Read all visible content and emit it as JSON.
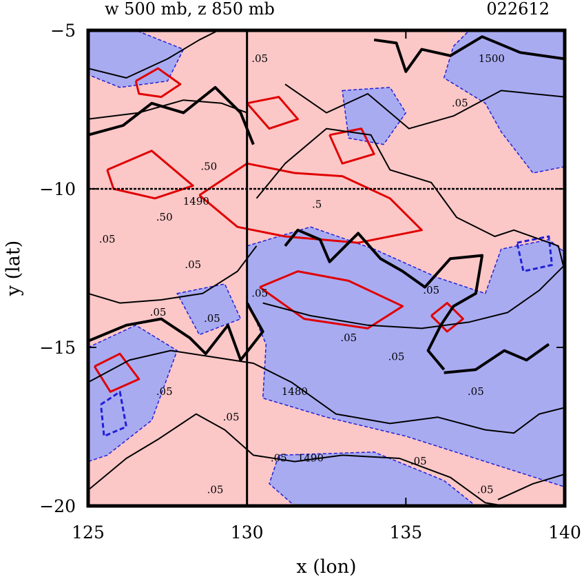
{
  "header": {
    "title": "w 500 mb, z 850 mb",
    "timestamp": "022612"
  },
  "chart_data": {
    "type": "contour",
    "xlabel": "x (lon)",
    "ylabel": "y (lat)",
    "xlim": [
      125,
      140
    ],
    "ylim": [
      -20,
      -5
    ],
    "x_ticks": [
      125,
      130,
      135,
      140
    ],
    "y_ticks": [
      -5,
      -10,
      -15,
      -20
    ],
    "x_tick_labels": [
      "125",
      "130",
      "135",
      "140"
    ],
    "y_tick_labels": [
      "−5",
      "−10",
      "−15",
      "−20"
    ],
    "reference_lines": {
      "lon": 130,
      "lat": -10
    },
    "colors": {
      "positive_fill": "#fbc7c7",
      "negative_fill": "#a9abf1",
      "positive_contour": "#e00000",
      "negative_contour": "#1f1fd8",
      "height_contour": "#000000"
    },
    "contour_labels": [
      {
        "text": ".05",
        "x": 130.4,
        "y": -6.0
      },
      {
        "text": ".05",
        "x": 136.7,
        "y": -7.4
      },
      {
        "text": ".50",
        "x": 128.8,
        "y": -9.4
      },
      {
        "text": "1490",
        "x": 128.4,
        "y": -10.5
      },
      {
        "text": ".5",
        "x": 132.2,
        "y": -10.6
      },
      {
        "text": ".50",
        "x": 127.4,
        "y": -11.0
      },
      {
        "text": "1500",
        "x": 137.7,
        "y": -6.0
      },
      {
        "text": ".05",
        "x": 125.6,
        "y": -11.7
      },
      {
        "text": ".05",
        "x": 128.3,
        "y": -12.5
      },
      {
        "text": ".05",
        "x": 127.2,
        "y": -14.0
      },
      {
        "text": ".05",
        "x": 128.9,
        "y": -14.2
      },
      {
        "text": ".05",
        "x": 130.4,
        "y": -13.4
      },
      {
        "text": ".05",
        "x": 133.2,
        "y": -14.8
      },
      {
        "text": ".05",
        "x": 135.8,
        "y": -13.3
      },
      {
        "text": ".05",
        "x": 134.7,
        "y": -15.4
      },
      {
        "text": ".05",
        "x": 127.4,
        "y": -16.5
      },
      {
        "text": ".05",
        "x": 129.5,
        "y": -17.3
      },
      {
        "text": "1480",
        "x": 131.5,
        "y": -16.5
      },
      {
        "text": ".05",
        "x": 137.2,
        "y": -16.5
      },
      {
        "text": ".05",
        "x": 131.0,
        "y": -18.6
      },
      {
        "text": "1490",
        "x": 132.0,
        "y": -18.6
      },
      {
        "text": ".05",
        "x": 135.4,
        "y": -18.7
      },
      {
        "text": ".05",
        "x": 129.0,
        "y": -19.6
      },
      {
        "text": ".05",
        "x": 137.5,
        "y": -19.6
      }
    ],
    "fill_regions": [
      {
        "sign": "negative",
        "points": [
          [
            125,
            -5
          ],
          [
            126.5,
            -5
          ],
          [
            128,
            -5.6
          ],
          [
            127.5,
            -6.6
          ],
          [
            126,
            -6.8
          ],
          [
            125,
            -6.4
          ]
        ]
      },
      {
        "sign": "negative",
        "points": [
          [
            137,
            -5
          ],
          [
            140,
            -5
          ],
          [
            140,
            -9.3
          ],
          [
            139,
            -9.5
          ],
          [
            138,
            -8.2
          ],
          [
            137.5,
            -7.3
          ],
          [
            136.2,
            -6.5
          ],
          [
            136.5,
            -5.5
          ]
        ]
      },
      {
        "sign": "negative",
        "points": [
          [
            133,
            -6.9
          ],
          [
            134.5,
            -6.8
          ],
          [
            135,
            -7.6
          ],
          [
            134.3,
            -8.6
          ],
          [
            133.2,
            -8.4
          ]
        ]
      },
      {
        "sign": "negative",
        "points": [
          [
            130,
            -11.8
          ],
          [
            132,
            -11.2
          ],
          [
            134,
            -11.9
          ],
          [
            136,
            -12.8
          ],
          [
            137.5,
            -13.3
          ],
          [
            138,
            -11.9
          ],
          [
            139.5,
            -11.6
          ],
          [
            140,
            -12
          ],
          [
            140,
            -19.4
          ],
          [
            137.5,
            -18.6
          ],
          [
            135,
            -17.8
          ],
          [
            132.5,
            -17.2
          ],
          [
            130.5,
            -16.6
          ],
          [
            130.6,
            -14.9
          ],
          [
            130,
            -13.5
          ]
        ]
      },
      {
        "sign": "negative",
        "points": [
          [
            125,
            -15
          ],
          [
            126.5,
            -14.3
          ],
          [
            127.8,
            -15.1
          ],
          [
            127,
            -17.3
          ],
          [
            125.6,
            -18.4
          ],
          [
            125,
            -18.6
          ]
        ]
      },
      {
        "sign": "negative",
        "points": [
          [
            127.8,
            -13.3
          ],
          [
            129.3,
            -13
          ],
          [
            129.8,
            -14.1
          ],
          [
            128.5,
            -14.6
          ]
        ]
      },
      {
        "sign": "negative",
        "points": [
          [
            131,
            -18.4
          ],
          [
            134,
            -18.3
          ],
          [
            136.2,
            -19.2
          ],
          [
            137.2,
            -20
          ],
          [
            131.5,
            -20
          ],
          [
            130.7,
            -19.3
          ]
        ]
      }
    ],
    "contour_lines": [
      {
        "kind": "positive",
        "points": [
          [
            126.5,
            -6.6
          ],
          [
            127.2,
            -6.2
          ],
          [
            127.9,
            -6.7
          ],
          [
            127.3,
            -7.1
          ],
          [
            126.6,
            -7.0
          ],
          [
            126.5,
            -6.6
          ]
        ]
      },
      {
        "kind": "positive",
        "points": [
          [
            125.6,
            -9.4
          ],
          [
            127.0,
            -8.8
          ],
          [
            128.3,
            -9.9
          ],
          [
            127.1,
            -10.3
          ],
          [
            125.8,
            -10.0
          ],
          [
            125.6,
            -9.4
          ]
        ]
      },
      {
        "kind": "positive",
        "points": [
          [
            128.5,
            -10.2
          ],
          [
            130.0,
            -9.2
          ],
          [
            131.5,
            -9.5
          ],
          [
            133,
            -9.6
          ],
          [
            134.5,
            -10.3
          ],
          [
            135.5,
            -11.3
          ],
          [
            133.5,
            -11.7
          ],
          [
            131.2,
            -11.5
          ],
          [
            129.7,
            -11.2
          ],
          [
            128.5,
            -10.2
          ]
        ]
      },
      {
        "kind": "positive",
        "points": [
          [
            130.4,
            -13.1
          ],
          [
            131.6,
            -12.6
          ],
          [
            133.2,
            -12.9
          ],
          [
            134.9,
            -13.7
          ],
          [
            133.8,
            -14.4
          ],
          [
            131.8,
            -14.1
          ],
          [
            130.4,
            -13.1
          ]
        ]
      },
      {
        "kind": "positive",
        "points": [
          [
            135.8,
            -14.0
          ],
          [
            136.3,
            -13.6
          ],
          [
            136.8,
            -14.1
          ],
          [
            136.3,
            -14.5
          ],
          [
            135.8,
            -14.0
          ]
        ]
      },
      {
        "kind": "positive",
        "points": [
          [
            125.2,
            -15.6
          ],
          [
            126,
            -15.2
          ],
          [
            126.6,
            -16.0
          ],
          [
            125.7,
            -16.4
          ],
          [
            125.2,
            -15.6
          ]
        ]
      },
      {
        "kind": "positive",
        "points": [
          [
            130.0,
            -7.3
          ],
          [
            131.0,
            -7.1
          ],
          [
            131.6,
            -7.8
          ],
          [
            130.7,
            -8.1
          ],
          [
            130.0,
            -7.3
          ]
        ]
      },
      {
        "kind": "positive",
        "points": [
          [
            132.6,
            -8.3
          ],
          [
            133.6,
            -8.1
          ],
          [
            134,
            -8.9
          ],
          [
            133,
            -9.2
          ],
          [
            132.6,
            -8.3
          ]
        ]
      },
      {
        "kind": "negative",
        "points": [
          [
            125.4,
            -16.8
          ],
          [
            126.0,
            -16.4
          ],
          [
            126.2,
            -17.5
          ],
          [
            125.5,
            -17.8
          ],
          [
            125.4,
            -16.8
          ]
        ]
      },
      {
        "kind": "negative",
        "points": [
          [
            138.5,
            -11.7
          ],
          [
            139.5,
            -11.5
          ],
          [
            139.6,
            -12.4
          ],
          [
            138.7,
            -12.6
          ],
          [
            138.5,
            -11.7
          ]
        ]
      },
      {
        "kind": "height",
        "points": [
          [
            125,
            -6.2
          ],
          [
            126.2,
            -6.5
          ],
          [
            127.5,
            -5.9
          ],
          [
            128.5,
            -5.3
          ],
          [
            129.1,
            -5
          ]
        ]
      },
      {
        "kind": "height",
        "points": [
          [
            125,
            -7.8
          ],
          [
            126.6,
            -7.6
          ],
          [
            128,
            -7.2
          ],
          [
            129.2,
            -7.3
          ],
          [
            130,
            -7.6
          ]
        ]
      },
      {
        "kind": "height",
        "points": [
          [
            131.2,
            -6.7
          ],
          [
            132.5,
            -7.6
          ],
          [
            133.8,
            -7.0
          ],
          [
            135.1,
            -8.1
          ],
          [
            136.5,
            -7.7
          ],
          [
            138,
            -6.9
          ],
          [
            140,
            -7.1
          ]
        ]
      },
      {
        "kind": "height",
        "points": [
          [
            130.3,
            -10.3
          ],
          [
            131.2,
            -9.2
          ],
          [
            132.5,
            -8.1
          ],
          [
            133.9,
            -8.3
          ],
          [
            134.5,
            -9.4
          ],
          [
            135.8,
            -9.8
          ],
          [
            136.6,
            -10.9
          ],
          [
            137.8,
            -11.5
          ],
          [
            138.4,
            -11.3
          ],
          [
            139.8,
            -11.8
          ],
          [
            140,
            -12.6
          ]
        ]
      },
      {
        "kind": "height",
        "points": [
          [
            125,
            -13.3
          ],
          [
            126,
            -13.6
          ],
          [
            127.3,
            -13.5
          ],
          [
            128.6,
            -13.3
          ],
          [
            129.7,
            -12.6
          ],
          [
            130.3,
            -11.8
          ]
        ]
      },
      {
        "kind": "height",
        "points": [
          [
            130.5,
            -13.6
          ],
          [
            132.0,
            -14.0
          ],
          [
            133.8,
            -14.3
          ],
          [
            135.5,
            -14.4
          ],
          [
            137,
            -14.2
          ],
          [
            138.2,
            -13.9
          ],
          [
            139.2,
            -13.2
          ],
          [
            140,
            -12.4
          ]
        ]
      },
      {
        "kind": "height",
        "points": [
          [
            125,
            -16.1
          ],
          [
            126.3,
            -15.4
          ],
          [
            127.6,
            -15.1
          ],
          [
            128.9,
            -15.3
          ],
          [
            130.2,
            -15.5
          ],
          [
            131.4,
            -16.1
          ],
          [
            132.8,
            -17.1
          ],
          [
            134.5,
            -17.4
          ],
          [
            136,
            -17.2
          ],
          [
            137.5,
            -17.6
          ],
          [
            138.4,
            -17.7
          ],
          [
            139.2,
            -17.1
          ],
          [
            140,
            -16.9
          ]
        ]
      },
      {
        "kind": "height",
        "points": [
          [
            125,
            -19.5
          ],
          [
            126.2,
            -18.5
          ],
          [
            127.2,
            -17.9
          ],
          [
            128.4,
            -17.1
          ],
          [
            129.3,
            -17.6
          ],
          [
            130.2,
            -18.4
          ],
          [
            131.5,
            -18.6
          ],
          [
            133,
            -18.4
          ],
          [
            134.8,
            -18.5
          ],
          [
            136.4,
            -19.1
          ],
          [
            137.5,
            -19.9
          ],
          [
            138.1,
            -20
          ]
        ]
      },
      {
        "kind": "height",
        "points": [
          [
            137.9,
            -19.8
          ],
          [
            139,
            -19.3
          ],
          [
            140,
            -19.0
          ]
        ]
      },
      {
        "kind": "height_bold",
        "points": [
          [
            125,
            -8.3
          ],
          [
            126.1,
            -8.0
          ],
          [
            127,
            -7.3
          ],
          [
            128,
            -7.6
          ],
          [
            129.0,
            -6.8
          ],
          [
            129.8,
            -7.6
          ],
          [
            130.2,
            -8.6
          ]
        ]
      },
      {
        "kind": "height_bold",
        "points": [
          [
            131.2,
            -11.8
          ],
          [
            131.6,
            -11.3
          ],
          [
            132.3,
            -11.6
          ],
          [
            132.6,
            -12.3
          ],
          [
            133.5,
            -11.4
          ],
          [
            134.2,
            -12.2
          ],
          [
            134.9,
            -12.6
          ],
          [
            135.6,
            -13.1
          ],
          [
            136.4,
            -12.2
          ],
          [
            137.4,
            -12.1
          ],
          [
            137.2,
            -13.3
          ],
          [
            136.5,
            -13.7
          ],
          [
            136.1,
            -14.3
          ],
          [
            135.7,
            -15.1
          ],
          [
            136.2,
            -15.7
          ]
        ]
      },
      {
        "kind": "height_bold",
        "points": [
          [
            125,
            -14.8
          ],
          [
            126.2,
            -14.3
          ],
          [
            127.3,
            -14.1
          ],
          [
            128.2,
            -14.7
          ],
          [
            128.7,
            -15.2
          ],
          [
            129.4,
            -14.3
          ],
          [
            129.8,
            -15.4
          ],
          [
            130.5,
            -14.5
          ],
          [
            130.0,
            -13.6
          ]
        ]
      },
      {
        "kind": "height_bold",
        "points": [
          [
            134,
            -5.3
          ],
          [
            134.7,
            -5.4
          ],
          [
            135,
            -6.3
          ],
          [
            135.5,
            -5.6
          ],
          [
            136.4,
            -5.8
          ],
          [
            137.4,
            -5.2
          ],
          [
            138.6,
            -5.7
          ],
          [
            140,
            -5.9
          ]
        ]
      },
      {
        "kind": "height_bold",
        "points": [
          [
            136.2,
            -15.8
          ],
          [
            137.2,
            -15.7
          ],
          [
            138.1,
            -15.1
          ],
          [
            138.8,
            -15.4
          ],
          [
            139.5,
            -14.9
          ]
        ]
      }
    ]
  }
}
